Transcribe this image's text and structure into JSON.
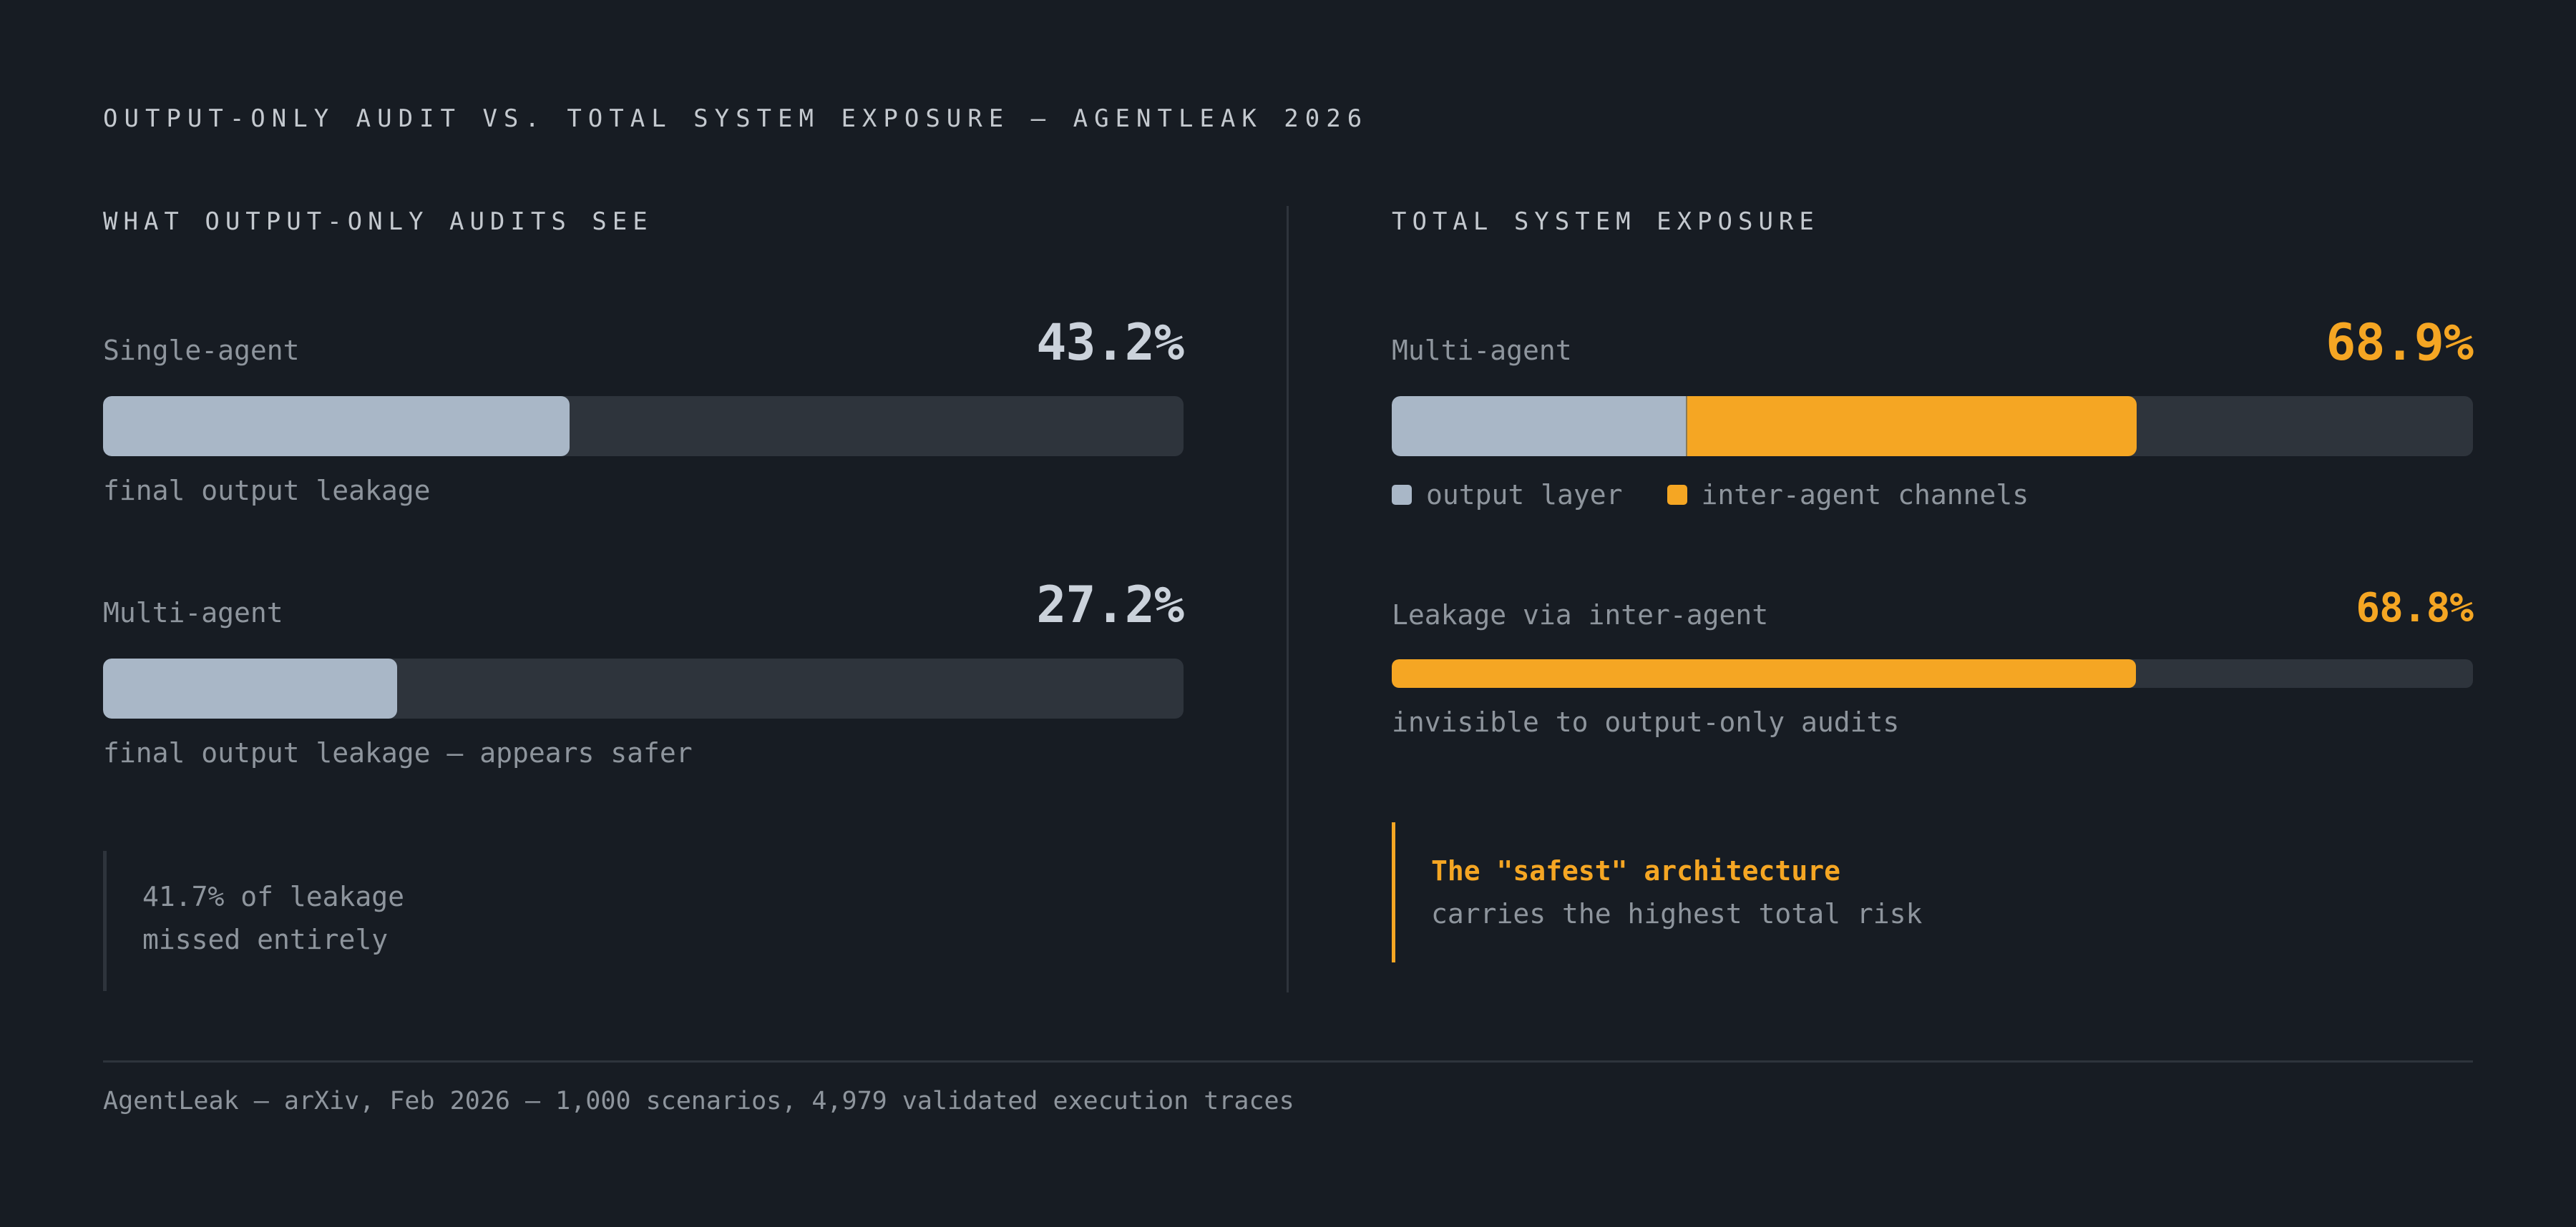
{
  "title": "OUTPUT-ONLY AUDIT VS. TOTAL SYSTEM EXPOSURE — AGENTLEAK 2026",
  "colors": {
    "background": "#171c23",
    "output_layer": "#a9b7c7",
    "inter_agent": "#f5a623",
    "track": "#2e343c"
  },
  "left_panel": {
    "title": "WHAT OUTPUT-ONLY AUDITS SEE",
    "note": [
      "41.7% of leakage",
      "missed entirely"
    ]
  },
  "right_panel": {
    "title": "TOTAL SYSTEM EXPOSURE",
    "legend": [
      "output layer",
      "inter-agent channels"
    ],
    "callout_highlight": "The \"safest\" architecture",
    "callout_text": "carries the highest total risk"
  },
  "footer": "AgentLeak — arXiv, Feb 2026 — 1,000 scenarios, 4,979 validated execution traces",
  "chart_data": [
    {
      "type": "bar",
      "title": "WHAT OUTPUT-ONLY AUDITS SEE",
      "ylim": [
        0,
        100
      ],
      "bars": [
        {
          "label": "Single-agent",
          "value": 43.2,
          "value_text": "43.2%",
          "caption": "final output leakage"
        },
        {
          "label": "Multi-agent",
          "value": 27.2,
          "value_text": "27.2%",
          "caption": "final output leakage — appears safer"
        }
      ]
    },
    {
      "type": "bar",
      "title": "TOTAL SYSTEM EXPOSURE",
      "ylim": [
        0,
        100
      ],
      "bars": [
        {
          "label": "Multi-agent",
          "value": 68.9,
          "value_text": "68.9%",
          "segments": [
            {
              "name": "output layer",
              "value": 27.2
            },
            {
              "name": "inter-agent channels",
              "value": 41.7
            }
          ]
        },
        {
          "label": "Leakage via inter-agent",
          "value": 68.8,
          "value_text": "68.8%",
          "caption": "invisible to output-only audits"
        }
      ]
    }
  ]
}
